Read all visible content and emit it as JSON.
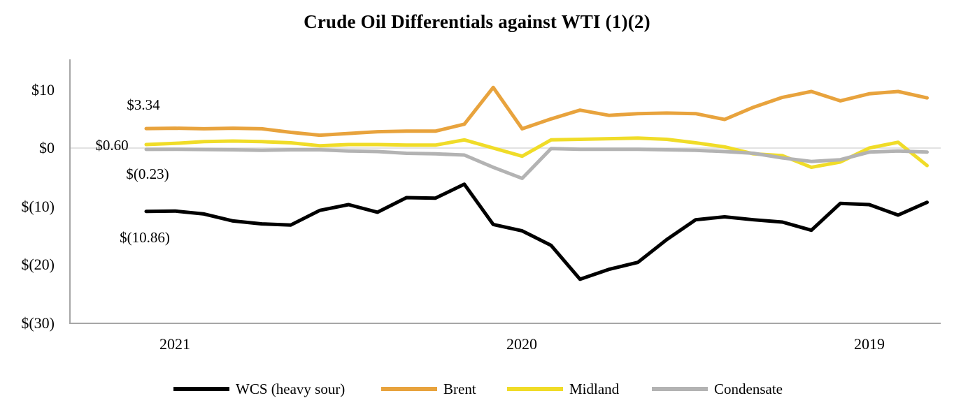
{
  "title": "Crude Oil Differentials against WTI (1)(2)",
  "chart_data": {
    "type": "line",
    "title": "Crude Oil Differentials against WTI (1)(2)",
    "x_tick_labels": [
      "2021",
      "2020",
      "2019"
    ],
    "x_axis_direction": "time runs right-to-left (most recent month at left, monthly points)",
    "n_points": 28,
    "y_tick_labels": [
      "$10",
      "$0",
      "$(10)",
      "$(20)",
      "$(30)"
    ],
    "y_tick_values": [
      10,
      0,
      -10,
      -20,
      -30
    ],
    "ylim": [
      -30,
      15
    ],
    "grid": "single horizontal gridline at $0",
    "legend_position": "bottom",
    "series": [
      {
        "name": "WCS (heavy sour)",
        "color": "#000000",
        "first_point_label": "$(10.86)",
        "values": [
          -10.86,
          -10.8,
          -11.3,
          -12.5,
          -13.0,
          -13.2,
          -10.7,
          -9.7,
          -11.0,
          -8.5,
          -8.6,
          -6.2,
          -13.1,
          -14.2,
          -16.7,
          -22.5,
          -20.8,
          -19.6,
          -15.7,
          -12.3,
          -11.8,
          -12.3,
          -12.7,
          -14.1,
          -9.5,
          -9.7,
          -11.5,
          -9.3
        ]
      },
      {
        "name": "Brent",
        "color": "#E8A33D",
        "first_point_label": "$3.34",
        "values": [
          3.34,
          3.4,
          3.3,
          3.4,
          3.3,
          2.7,
          2.2,
          2.5,
          2.8,
          2.9,
          2.9,
          4.1,
          10.4,
          3.3,
          5.0,
          6.5,
          5.6,
          5.9,
          6.0,
          5.9,
          4.9,
          7.0,
          8.7,
          9.7,
          8.1,
          9.3,
          9.7,
          8.6
        ]
      },
      {
        "name": "Midland",
        "color": "#F0DC28",
        "first_point_label": "$0.60",
        "values": [
          0.6,
          0.8,
          1.1,
          1.2,
          1.1,
          0.9,
          0.4,
          0.6,
          0.6,
          0.5,
          0.5,
          1.4,
          0.0,
          -1.4,
          1.4,
          1.5,
          1.6,
          1.7,
          1.5,
          0.9,
          0.2,
          -1.0,
          -1.3,
          -3.3,
          -2.4,
          0.0,
          1.0,
          -3.0
        ]
      },
      {
        "name": "Condensate",
        "color": "#B3B3B3",
        "first_point_label": "$(0.23)",
        "values": [
          -0.23,
          -0.2,
          -0.25,
          -0.3,
          -0.4,
          -0.3,
          -0.3,
          -0.5,
          -0.6,
          -0.9,
          -1.0,
          -1.2,
          -3.3,
          -5.2,
          -0.1,
          -0.2,
          -0.2,
          -0.2,
          -0.3,
          -0.4,
          -0.6,
          -0.9,
          -1.7,
          -2.3,
          -2.0,
          -0.7,
          -0.5,
          -0.7
        ]
      }
    ],
    "point_labels": [
      {
        "text": "$3.34",
        "series": "Brent"
      },
      {
        "text": "$0.60",
        "series": "Midland"
      },
      {
        "text": "$(0.23)",
        "series": "Condensate"
      },
      {
        "text": "$(10.86)",
        "series": "WCS (heavy sour)"
      }
    ]
  },
  "legend": {
    "items": [
      {
        "label": "WCS (heavy sour)",
        "color": "#000000"
      },
      {
        "label": "Brent",
        "color": "#E8A33D"
      },
      {
        "label": "Midland",
        "color": "#F0DC28"
      },
      {
        "label": "Condensate",
        "color": "#B3B3B3"
      }
    ]
  },
  "axis_colors": {
    "axis_line": "#A6A6A6",
    "zero_gridline": "#D9D9D9"
  }
}
